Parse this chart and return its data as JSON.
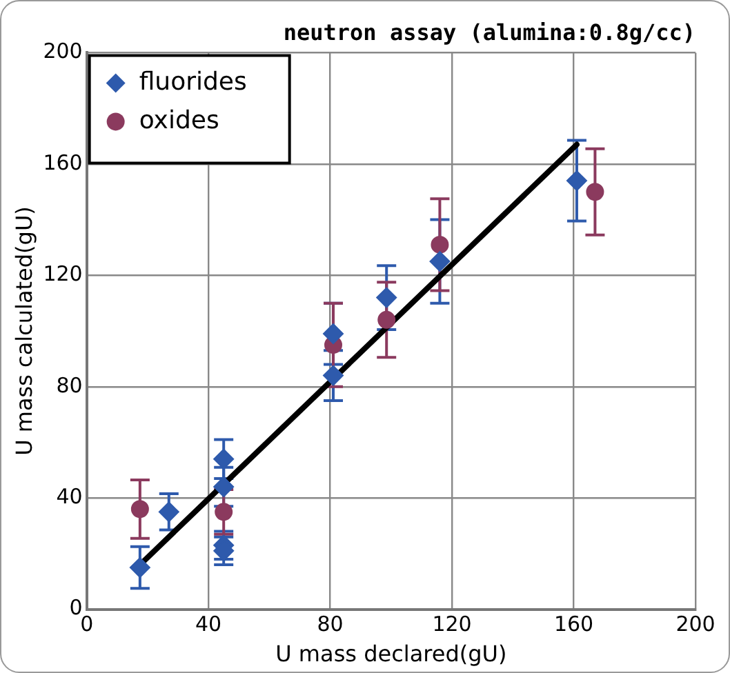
{
  "chart_data": {
    "type": "scatter",
    "title": "neutron assay (alumina:0.8g/cc)",
    "xlabel": "U mass declared(gU)",
    "ylabel": "U mass calculated(gU)",
    "xlim": [
      0,
      200
    ],
    "xticks": [
      0,
      40,
      80,
      120,
      160,
      200
    ],
    "ylim": [
      0,
      200
    ],
    "yticks": [
      0,
      40,
      80,
      120,
      160,
      200
    ],
    "grid": true,
    "legend": "top left",
    "series": [
      {
        "name": "fluorides",
        "type": "scatter",
        "marker": "diamond",
        "color": "#2e5aac",
        "x": [
          17.5,
          27,
          45,
          45,
          45,
          45,
          81,
          81,
          98.5,
          116,
          161
        ],
        "values": [
          15,
          35,
          54,
          44,
          23,
          21,
          99,
          84,
          112,
          125,
          154
        ],
        "errors": [
          7.5,
          6.5,
          7,
          7,
          5,
          5,
          11,
          9,
          11.5,
          15,
          14.5
        ]
      },
      {
        "name": "oxides",
        "type": "scatter",
        "marker": "circle",
        "color": "#8b3a5e",
        "x": [
          17.5,
          45,
          81,
          98.5,
          116,
          167
        ],
        "values": [
          36,
          35,
          95,
          104,
          131,
          150
        ],
        "errors": [
          10.5,
          8,
          15,
          13.5,
          16.5,
          15.5
        ]
      },
      {
        "type": "line",
        "marker": "none",
        "color": "#000000",
        "x": [
          17.5,
          161
        ],
        "values": [
          16,
          167
        ]
      }
    ]
  }
}
